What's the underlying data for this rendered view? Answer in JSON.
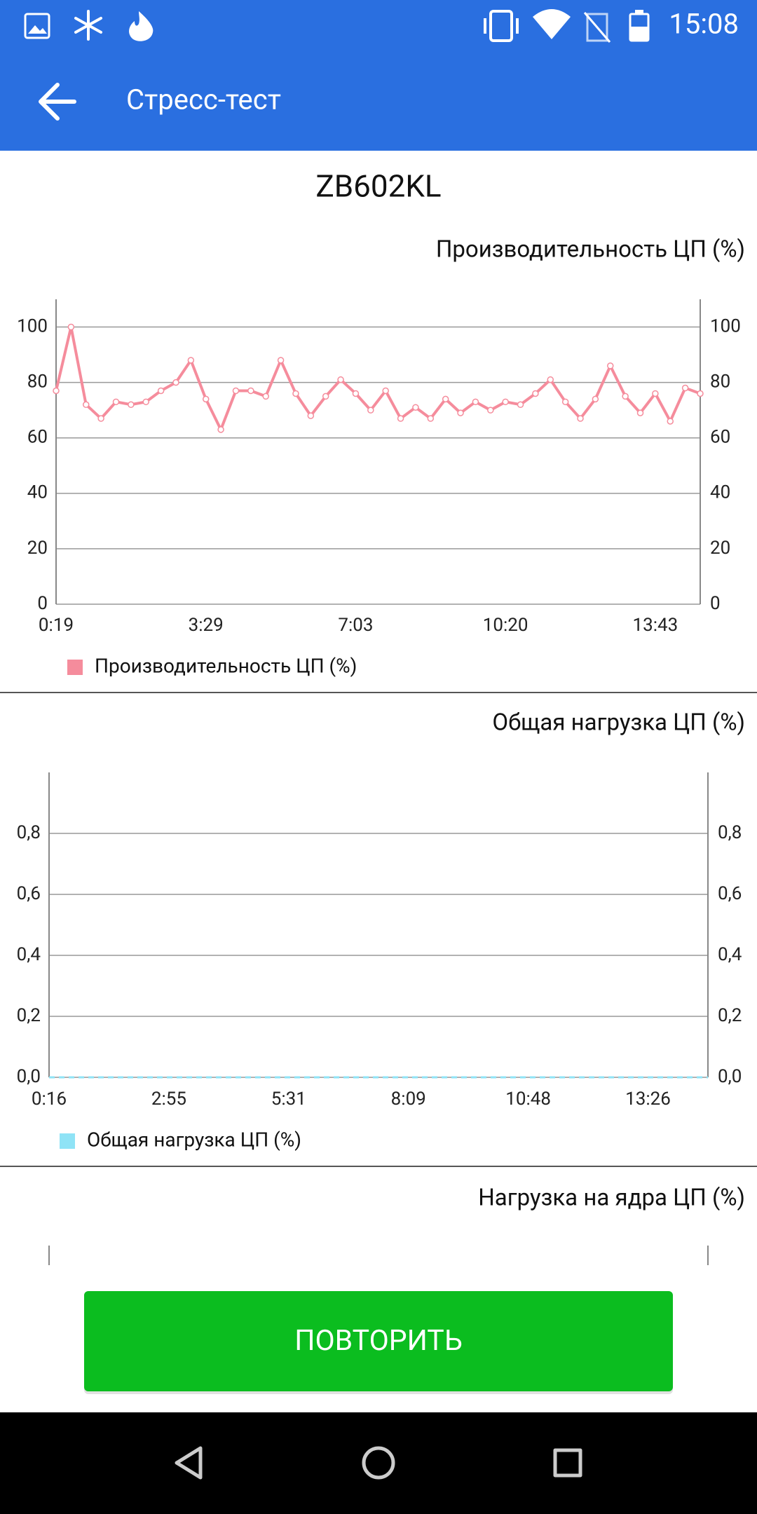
{
  "status_bar": {
    "time": "15:08"
  },
  "app_bar": {
    "title": "Стресс-тест"
  },
  "device": "ZB602KL",
  "chart_data": [
    {
      "type": "line",
      "title": "Производительность ЦП (%)",
      "categories": [
        "0:19",
        null,
        null,
        null,
        null,
        null,
        null,
        null,
        null,
        null,
        "3:29",
        null,
        null,
        null,
        null,
        null,
        null,
        null,
        null,
        null,
        "7:03",
        null,
        null,
        null,
        null,
        null,
        null,
        null,
        null,
        null,
        "10:20",
        null,
        null,
        null,
        null,
        null,
        null,
        null,
        null,
        null,
        "13:43",
        null,
        null,
        null
      ],
      "series": [
        {
          "name": "Производительность ЦП (%)",
          "color": "#f58c9c",
          "values": [
            77,
            100,
            72,
            67,
            73,
            72,
            73,
            77,
            80,
            88,
            74,
            63,
            77,
            77,
            75,
            88,
            76,
            68,
            75,
            81,
            76,
            70,
            77,
            67,
            71,
            67,
            74,
            69,
            73,
            70,
            73,
            72,
            76,
            81,
            73,
            67,
            74,
            86,
            75,
            69,
            76,
            66,
            78,
            76
          ]
        }
      ],
      "ylim": [
        0,
        110
      ],
      "yticks": [
        0,
        20,
        40,
        60,
        80,
        100
      ],
      "grid": true,
      "right_axis": true,
      "markers": true,
      "line_style": "solid",
      "legend": "bottom-left"
    },
    {
      "type": "line",
      "title": "Общая нагрузка ЦП (%)",
      "categories": [
        "0:16",
        null,
        null,
        null,
        null,
        null,
        null,
        null,
        "2:55",
        null,
        null,
        null,
        null,
        null,
        null,
        null,
        "5:31",
        null,
        null,
        null,
        null,
        null,
        null,
        null,
        "8:09",
        null,
        null,
        null,
        null,
        null,
        null,
        null,
        "10:48",
        null,
        null,
        null,
        null,
        null,
        null,
        null,
        "13:26",
        null,
        null,
        null,
        null
      ],
      "series": [
        {
          "name": "Общая нагрузка ЦП (%)",
          "color": "#8fe3f6",
          "values": [
            0,
            0,
            0,
            0,
            0,
            0,
            0,
            0,
            0,
            0,
            0,
            0,
            0,
            0,
            0,
            0,
            0,
            0,
            0,
            0,
            0,
            0,
            0,
            0,
            0,
            0,
            0,
            0,
            0,
            0,
            0,
            0,
            0,
            0,
            0,
            0,
            0,
            0,
            0,
            0,
            0,
            0,
            0,
            0,
            0
          ]
        }
      ],
      "ylim": [
        0,
        1
      ],
      "yticks": [
        {
          "value": 0,
          "label": "0,0"
        },
        {
          "value": 0.2,
          "label": "0,2"
        },
        {
          "value": 0.4,
          "label": "0,4"
        },
        {
          "value": 0.6,
          "label": "0,6"
        },
        {
          "value": 0.8,
          "label": "0,8"
        }
      ],
      "grid": true,
      "right_axis": true,
      "markers": false,
      "line_style": "dashed",
      "legend": "bottom-left"
    }
  ],
  "cores_chart": {
    "title": "Нагрузка на ядра ЦП (%)"
  },
  "button": "ПОВТОРИТЬ"
}
